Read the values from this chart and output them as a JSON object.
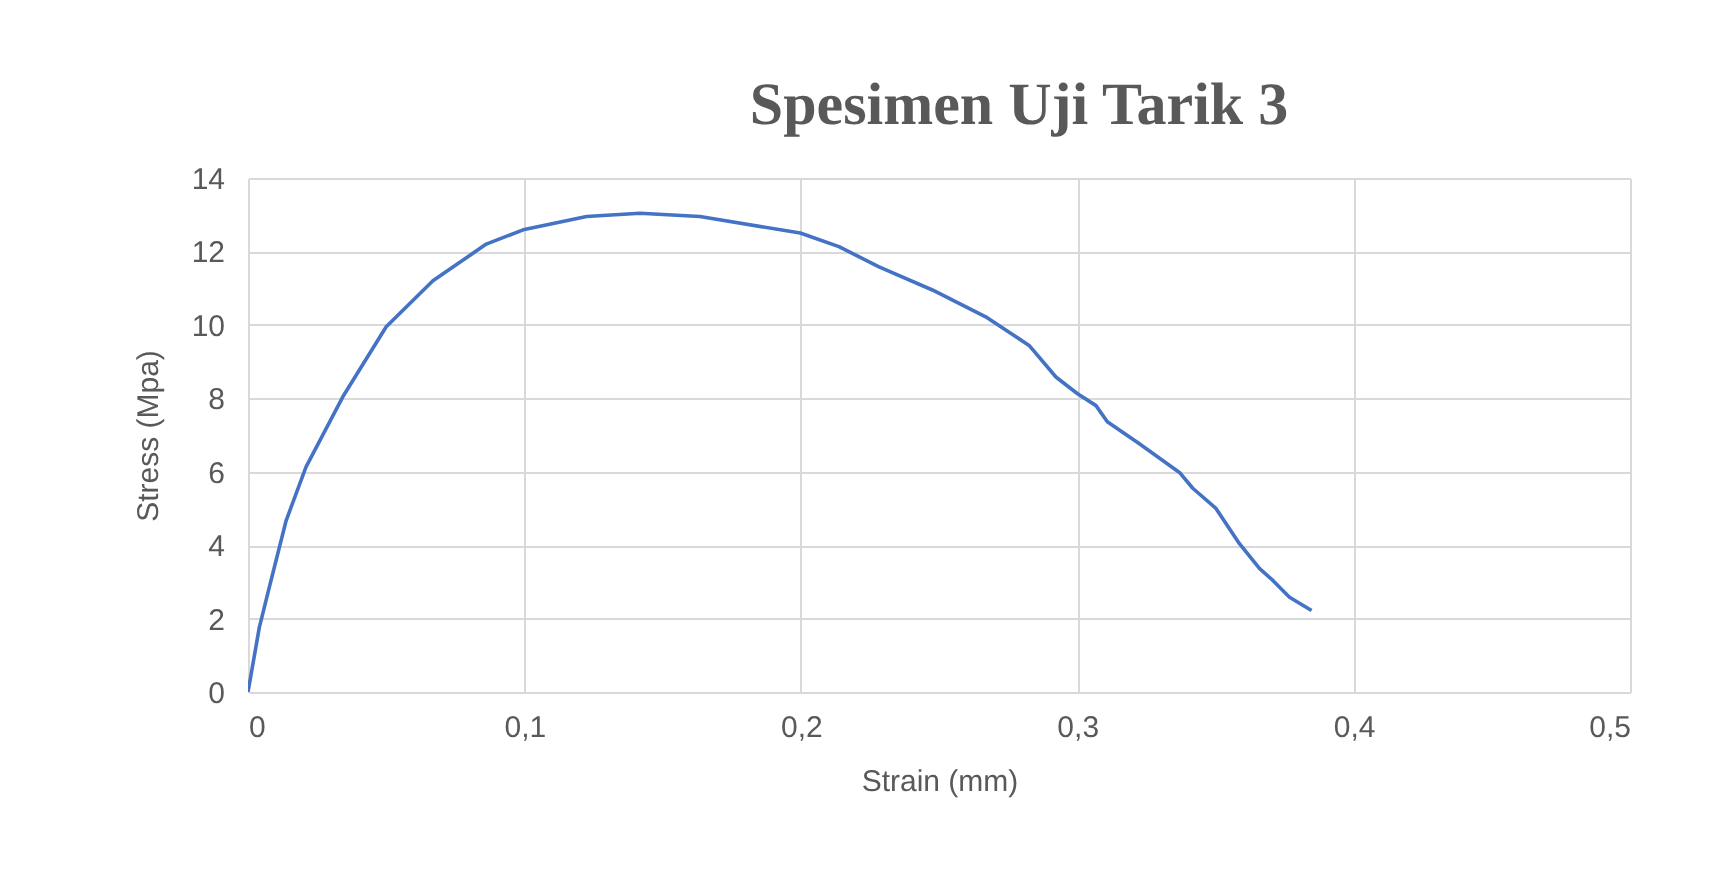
{
  "chart_data": {
    "type": "line",
    "title": "Spesimen Uji Tarik 3",
    "xlabel": "Strain (mm)",
    "ylabel": "Stress (Mpa)",
    "x": [
      0,
      0.0041,
      0.0077,
      0.0138,
      0.021,
      0.0343,
      0.05,
      0.0669,
      0.0862,
      0.1,
      0.1225,
      0.1418,
      0.1635,
      0.1998,
      0.2138,
      0.2283,
      0.2476,
      0.2669,
      0.2826,
      0.2923,
      0.3,
      0.3068,
      0.3109,
      0.3225,
      0.337,
      0.3418,
      0.3502,
      0.3587,
      0.366,
      0.3708,
      0.3768,
      0.3848
    ],
    "series": [
      {
        "color": "#4472c4",
        "values": [
          0,
          1.76,
          2.85,
          4.67,
          6.13,
          8.04,
          9.95,
          11.2,
          12.2,
          12.6,
          12.95,
          13.04,
          12.95,
          12.5,
          12.13,
          11.58,
          10.95,
          10.22,
          9.44,
          8.58,
          8.13,
          7.8,
          7.36,
          6.76,
          5.98,
          5.55,
          5.0,
          4.04,
          3.36,
          3.04,
          2.58,
          2.22
        ]
      }
    ],
    "xlim": [
      0,
      0.5
    ],
    "xticks": [
      0,
      {
        "value": 0.1,
        "label": "0,1"
      },
      {
        "value": 0.2,
        "label": "0,2"
      },
      {
        "value": 0.3,
        "label": "0,3"
      },
      {
        "value": 0.4,
        "label": "0,4"
      },
      {
        "value": 0.5,
        "label": "0,5"
      }
    ],
    "ylim": [
      0,
      14
    ],
    "yticks": [
      0,
      2,
      4,
      6,
      8,
      10,
      12,
      14
    ],
    "grid": true,
    "marker": "none",
    "line_style": "solid"
  }
}
